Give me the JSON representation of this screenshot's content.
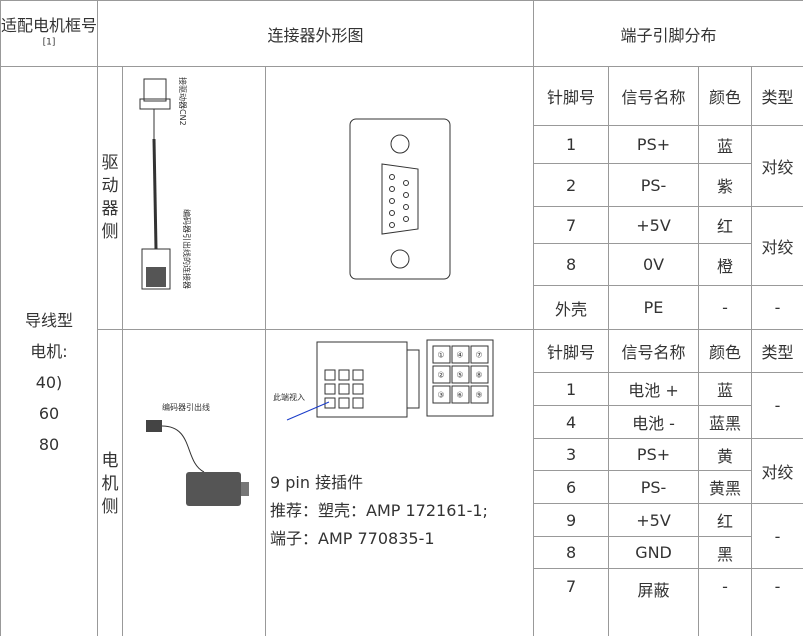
{
  "header": {
    "frame": "适配电机框号",
    "footnote": "[1]",
    "connector": "连接器外形图",
    "pins": "端子引脚分布"
  },
  "frame_lines": [
    "导线型",
    "电机:",
    "40)",
    "60",
    "80"
  ],
  "sections": [
    {
      "side": "驱动器侧",
      "image_labels": [
        "接驱动器CN2",
        "编码器引出线的连接器"
      ],
      "pin_header": [
        "针脚号",
        "信号名称",
        "颜色",
        "类型"
      ],
      "rows": [
        [
          "1",
          "PS+",
          "蓝",
          "对绞"
        ],
        [
          "2",
          "PS-",
          "紫"
        ],
        [
          "7",
          "+5V",
          "红",
          "对绞"
        ],
        [
          "8",
          "0V",
          "橙"
        ],
        [
          "外壳",
          "PE",
          "-",
          "-"
        ]
      ]
    },
    {
      "side": "电机侧",
      "image_labels": [
        "编码器引出线",
        "此端视入"
      ],
      "pin_grid": [
        "①",
        "④",
        "⑦",
        "②",
        "⑤",
        "⑧",
        "③",
        "⑥",
        "⑨"
      ],
      "connector_text": [
        "9 pin 接插件",
        "推荐：塑壳：AMP 172161-1;",
        "端子：AMP 770835-1"
      ],
      "pin_header": [
        "针脚号",
        "信号名称",
        "颜色",
        "类型"
      ],
      "rows": [
        [
          "1",
          "电池 +",
          "蓝",
          "-"
        ],
        [
          "4",
          "电池 -",
          "蓝黑"
        ],
        [
          "3",
          "PS+",
          "黄",
          "对绞"
        ],
        [
          "6",
          "PS-",
          "黄黑"
        ],
        [
          "9",
          "+5V",
          "红",
          "-"
        ],
        [
          "8",
          "GND",
          "黑"
        ],
        [
          "7",
          "屏蔽",
          "-",
          "-"
        ]
      ]
    }
  ]
}
